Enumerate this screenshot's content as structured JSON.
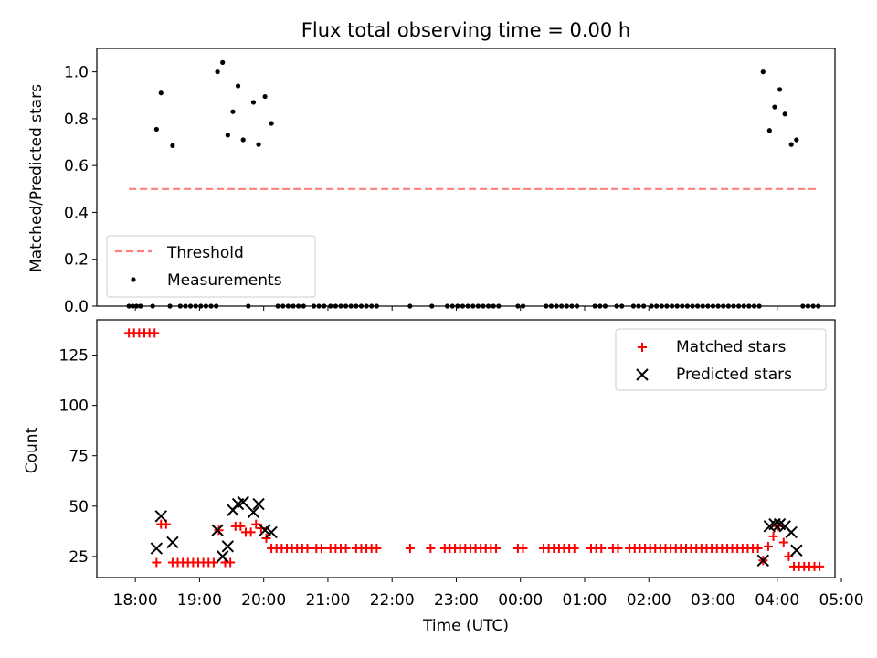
{
  "chart_data": [
    {
      "type": "scatter",
      "title": "Flux total observing time = 0.00 h",
      "ylabel": "Matched/Predicted stars",
      "xlabel": "",
      "ylim": [
        0,
        1.1
      ],
      "yticks": [
        0.0,
        0.2,
        0.4,
        0.6,
        0.8,
        1.0
      ],
      "ytick_labels": [
        "0.0",
        "0.2",
        "0.4",
        "0.6",
        "0.8",
        "1.0"
      ],
      "legend": {
        "position": "lower-left",
        "entries": [
          "Threshold",
          "Measurements"
        ]
      },
      "threshold": {
        "name": "Threshold",
        "value": 0.5,
        "x_start": -0.1,
        "x_end": 10.65,
        "color": "#ff7f7f"
      },
      "measurements": {
        "name": "Measurements",
        "color": "#000000",
        "points": [
          [
            0.33,
            0.755
          ],
          [
            0.4,
            0.91
          ],
          [
            0.58,
            0.685
          ],
          [
            1.28,
            1.0
          ],
          [
            1.36,
            1.04
          ],
          [
            1.44,
            0.73
          ],
          [
            1.52,
            0.83
          ],
          [
            1.6,
            0.94
          ],
          [
            1.68,
            0.71
          ],
          [
            1.84,
            0.87
          ],
          [
            1.92,
            0.69
          ],
          [
            2.02,
            0.895
          ],
          [
            2.12,
            0.78
          ],
          [
            9.78,
            1.0
          ],
          [
            9.88,
            0.75
          ],
          [
            9.96,
            0.85
          ],
          [
            10.04,
            0.925
          ],
          [
            10.12,
            0.82
          ],
          [
            10.22,
            0.69
          ],
          [
            10.3,
            0.71
          ],
          [
            -0.1,
            0
          ],
          [
            -0.04,
            0
          ],
          [
            0.02,
            0
          ],
          [
            0.08,
            0
          ],
          [
            0.27,
            0
          ],
          [
            0.54,
            0
          ],
          [
            0.7,
            0
          ],
          [
            0.78,
            0
          ],
          [
            0.86,
            0
          ],
          [
            0.94,
            0
          ],
          [
            1.02,
            0
          ],
          [
            1.1,
            0
          ],
          [
            1.18,
            0
          ],
          [
            1.26,
            0
          ],
          [
            1.76,
            0
          ],
          [
            2.22,
            0
          ],
          [
            2.3,
            0
          ],
          [
            2.38,
            0
          ],
          [
            2.46,
            0
          ],
          [
            2.54,
            0
          ],
          [
            2.62,
            0
          ],
          [
            2.78,
            0
          ],
          [
            2.86,
            0
          ],
          [
            2.94,
            0
          ],
          [
            3.04,
            0
          ],
          [
            3.12,
            0
          ],
          [
            3.2,
            0
          ],
          [
            3.28,
            0
          ],
          [
            3.36,
            0
          ],
          [
            3.44,
            0
          ],
          [
            3.52,
            0
          ],
          [
            3.6,
            0
          ],
          [
            3.68,
            0
          ],
          [
            3.76,
            0
          ],
          [
            4.28,
            0
          ],
          [
            4.62,
            0
          ],
          [
            4.86,
            0
          ],
          [
            4.94,
            0
          ],
          [
            5.02,
            0
          ],
          [
            5.1,
            0
          ],
          [
            5.18,
            0
          ],
          [
            5.26,
            0
          ],
          [
            5.34,
            0
          ],
          [
            5.42,
            0
          ],
          [
            5.5,
            0
          ],
          [
            5.58,
            0
          ],
          [
            5.66,
            0
          ],
          [
            5.96,
            0
          ],
          [
            6.04,
            0
          ],
          [
            6.4,
            0
          ],
          [
            6.48,
            0
          ],
          [
            6.56,
            0
          ],
          [
            6.64,
            0
          ],
          [
            6.72,
            0
          ],
          [
            6.8,
            0
          ],
          [
            6.88,
            0
          ],
          [
            7.16,
            0
          ],
          [
            7.24,
            0
          ],
          [
            7.32,
            0
          ],
          [
            7.5,
            0
          ],
          [
            7.58,
            0
          ],
          [
            7.76,
            0
          ],
          [
            7.84,
            0
          ],
          [
            7.92,
            0
          ],
          [
            8.04,
            0
          ],
          [
            8.12,
            0
          ],
          [
            8.2,
            0
          ],
          [
            8.28,
            0
          ],
          [
            8.36,
            0
          ],
          [
            8.44,
            0
          ],
          [
            8.52,
            0
          ],
          [
            8.6,
            0
          ],
          [
            8.68,
            0
          ],
          [
            8.76,
            0
          ],
          [
            8.84,
            0
          ],
          [
            8.92,
            0
          ],
          [
            9.0,
            0
          ],
          [
            9.08,
            0
          ],
          [
            9.16,
            0
          ],
          [
            9.24,
            0
          ],
          [
            9.32,
            0
          ],
          [
            9.4,
            0
          ],
          [
            9.48,
            0
          ],
          [
            9.56,
            0
          ],
          [
            9.64,
            0
          ],
          [
            9.72,
            0
          ],
          [
            10.4,
            0
          ],
          [
            10.48,
            0
          ],
          [
            10.56,
            0
          ],
          [
            10.64,
            0
          ]
        ]
      }
    },
    {
      "type": "scatter",
      "title": "",
      "ylabel": "Count",
      "xlabel": "Time (UTC)",
      "ylim": [
        14.5,
        142.5
      ],
      "yticks": [
        25,
        50,
        75,
        100,
        125
      ],
      "ytick_labels": [
        "25",
        "50",
        "75",
        "100",
        "125"
      ],
      "xlim": [
        -0.6,
        10.9
      ],
      "xticks": [
        0,
        1,
        2,
        3,
        4,
        5,
        6,
        7,
        8,
        9,
        10,
        11
      ],
      "xtick_labels": [
        "18:00",
        "19:00",
        "20:00",
        "21:00",
        "22:00",
        "23:00",
        "00:00",
        "01:00",
        "02:00",
        "03:00",
        "04:00",
        "05:00"
      ],
      "legend": {
        "position": "upper-right",
        "entries": [
          "Matched stars",
          "Predicted stars"
        ]
      },
      "series": [
        {
          "name": "Matched stars",
          "marker": "plus",
          "color": "#ff0000",
          "points": [
            [
              -0.1,
              136
            ],
            [
              -0.02,
              136
            ],
            [
              0.06,
              136
            ],
            [
              0.14,
              136
            ],
            [
              0.22,
              136
            ],
            [
              0.3,
              136
            ],
            [
              0.33,
              22
            ],
            [
              0.4,
              41
            ],
            [
              0.48,
              41
            ],
            [
              0.58,
              22
            ],
            [
              0.66,
              22
            ],
            [
              0.74,
              22
            ],
            [
              0.82,
              22
            ],
            [
              0.9,
              22
            ],
            [
              0.98,
              22
            ],
            [
              1.06,
              22
            ],
            [
              1.14,
              22
            ],
            [
              1.22,
              22
            ],
            [
              1.3,
              38
            ],
            [
              1.4,
              22
            ],
            [
              1.48,
              22
            ],
            [
              1.56,
              40
            ],
            [
              1.64,
              40
            ],
            [
              1.72,
              37
            ],
            [
              1.8,
              37
            ],
            [
              1.88,
              41
            ],
            [
              1.96,
              39
            ],
            [
              2.04,
              34
            ],
            [
              2.12,
              29
            ],
            [
              2.2,
              29
            ],
            [
              2.28,
              29
            ],
            [
              2.36,
              29
            ],
            [
              2.44,
              29
            ],
            [
              2.52,
              29
            ],
            [
              2.6,
              29
            ],
            [
              2.68,
              29
            ],
            [
              2.82,
              29
            ],
            [
              2.9,
              29
            ],
            [
              3.04,
              29
            ],
            [
              3.12,
              29
            ],
            [
              3.2,
              29
            ],
            [
              3.28,
              29
            ],
            [
              3.44,
              29
            ],
            [
              3.52,
              29
            ],
            [
              3.6,
              29
            ],
            [
              3.68,
              29
            ],
            [
              3.76,
              29
            ],
            [
              4.28,
              29
            ],
            [
              4.6,
              29
            ],
            [
              4.82,
              29
            ],
            [
              4.9,
              29
            ],
            [
              4.98,
              29
            ],
            [
              5.06,
              29
            ],
            [
              5.14,
              29
            ],
            [
              5.22,
              29
            ],
            [
              5.3,
              29
            ],
            [
              5.38,
              29
            ],
            [
              5.46,
              29
            ],
            [
              5.54,
              29
            ],
            [
              5.62,
              29
            ],
            [
              5.96,
              29
            ],
            [
              6.04,
              29
            ],
            [
              6.36,
              29
            ],
            [
              6.44,
              29
            ],
            [
              6.52,
              29
            ],
            [
              6.6,
              29
            ],
            [
              6.68,
              29
            ],
            [
              6.76,
              29
            ],
            [
              6.84,
              29
            ],
            [
              7.1,
              29
            ],
            [
              7.18,
              29
            ],
            [
              7.26,
              29
            ],
            [
              7.44,
              29
            ],
            [
              7.52,
              29
            ],
            [
              7.7,
              29
            ],
            [
              7.78,
              29
            ],
            [
              7.86,
              29
            ],
            [
              7.94,
              29
            ],
            [
              8.02,
              29
            ],
            [
              8.1,
              29
            ],
            [
              8.18,
              29
            ],
            [
              8.26,
              29
            ],
            [
              8.34,
              29
            ],
            [
              8.42,
              29
            ],
            [
              8.5,
              29
            ],
            [
              8.58,
              29
            ],
            [
              8.66,
              29
            ],
            [
              8.74,
              29
            ],
            [
              8.82,
              29
            ],
            [
              8.9,
              29
            ],
            [
              8.98,
              29
            ],
            [
              9.06,
              29
            ],
            [
              9.14,
              29
            ],
            [
              9.22,
              29
            ],
            [
              9.3,
              29
            ],
            [
              9.38,
              29
            ],
            [
              9.46,
              29
            ],
            [
              9.54,
              29
            ],
            [
              9.62,
              29
            ],
            [
              9.7,
              29
            ],
            [
              9.78,
              23
            ],
            [
              9.86,
              30
            ],
            [
              9.94,
              35
            ],
            [
              10.02,
              40
            ],
            [
              10.1,
              32
            ],
            [
              10.18,
              25
            ],
            [
              10.26,
              20
            ],
            [
              10.34,
              20
            ],
            [
              10.42,
              20
            ],
            [
              10.5,
              20
            ],
            [
              10.58,
              20
            ],
            [
              10.66,
              20
            ]
          ]
        },
        {
          "name": "Predicted stars",
          "marker": "x",
          "color": "#000000",
          "points": [
            [
              0.33,
              29
            ],
            [
              0.4,
              45
            ],
            [
              0.58,
              32
            ],
            [
              1.28,
              38
            ],
            [
              1.36,
              25
            ],
            [
              1.44,
              30
            ],
            [
              1.52,
              48
            ],
            [
              1.6,
              51
            ],
            [
              1.68,
              52
            ],
            [
              1.84,
              47
            ],
            [
              1.92,
              51
            ],
            [
              2.02,
              38
            ],
            [
              2.12,
              37
            ],
            [
              9.78,
              23
            ],
            [
              9.88,
              40
            ],
            [
              9.96,
              41
            ],
            [
              10.04,
              41
            ],
            [
              10.12,
              40
            ],
            [
              10.22,
              37
            ],
            [
              10.3,
              28
            ]
          ]
        }
      ]
    }
  ]
}
